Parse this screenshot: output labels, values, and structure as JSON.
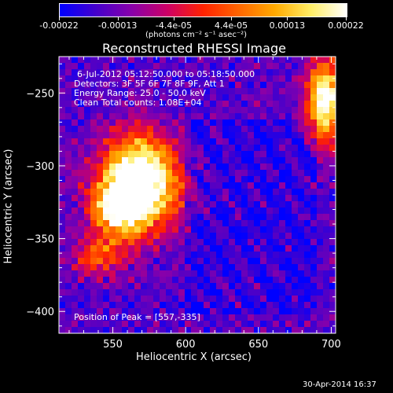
{
  "colorbar": {
    "tick_labels": [
      "-0.00022",
      "-0.00013",
      "-4.4e-05",
      "4.4e-05",
      "0.00013",
      "0.00022"
    ],
    "units_label": "(photons cm⁻² s⁻¹ asec⁻²)",
    "range": [
      -0.00022,
      0.00022
    ],
    "colormap": [
      "#0000ff",
      "#4400cc",
      "#8800aa",
      "#cc0066",
      "#ff2200",
      "#ff6600",
      "#ffaa00",
      "#ffee66",
      "#ffffff"
    ]
  },
  "chart_data": {
    "type": "heatmap",
    "title": "Reconstructed RHESSI Image",
    "xlabel": "Heliocentric X (arcsec)",
    "ylabel": "Heliocentric Y (arcsec)",
    "xlim": [
      513,
      703
    ],
    "ylim": [
      -415,
      -225
    ],
    "x_ticks": [
      550,
      600,
      650,
      700
    ],
    "y_ticks": [
      -250,
      -300,
      -350,
      -400
    ],
    "annotations": [
      "6-Jul-2012 05:12:50.000 to 05:18:50.000",
      "Detectors: 3F 5F 6F 7F 8F 9F, Att 1",
      "Energy Range: 25.0 - 50.0 keV",
      "Clean     Total counts: 1.08E+04",
      "Position of Peak = [557,-335]"
    ],
    "peak": [
      557,
      -335
    ],
    "emission_sources": [
      {
        "x": 568,
        "y": -312,
        "sx": 26,
        "sy": 32,
        "amp": 1.15
      },
      {
        "x": 552,
        "y": -330,
        "sx": 16,
        "sy": 16,
        "amp": 0.6
      },
      {
        "x": 695,
        "y": -255,
        "sx": 12,
        "sy": 28,
        "amp": 0.9
      },
      {
        "x": 540,
        "y": -362,
        "sx": 18,
        "sy": 14,
        "amp": 0.4
      }
    ]
  },
  "footer": {
    "timestamp": "30-Apr-2014 16:37"
  }
}
